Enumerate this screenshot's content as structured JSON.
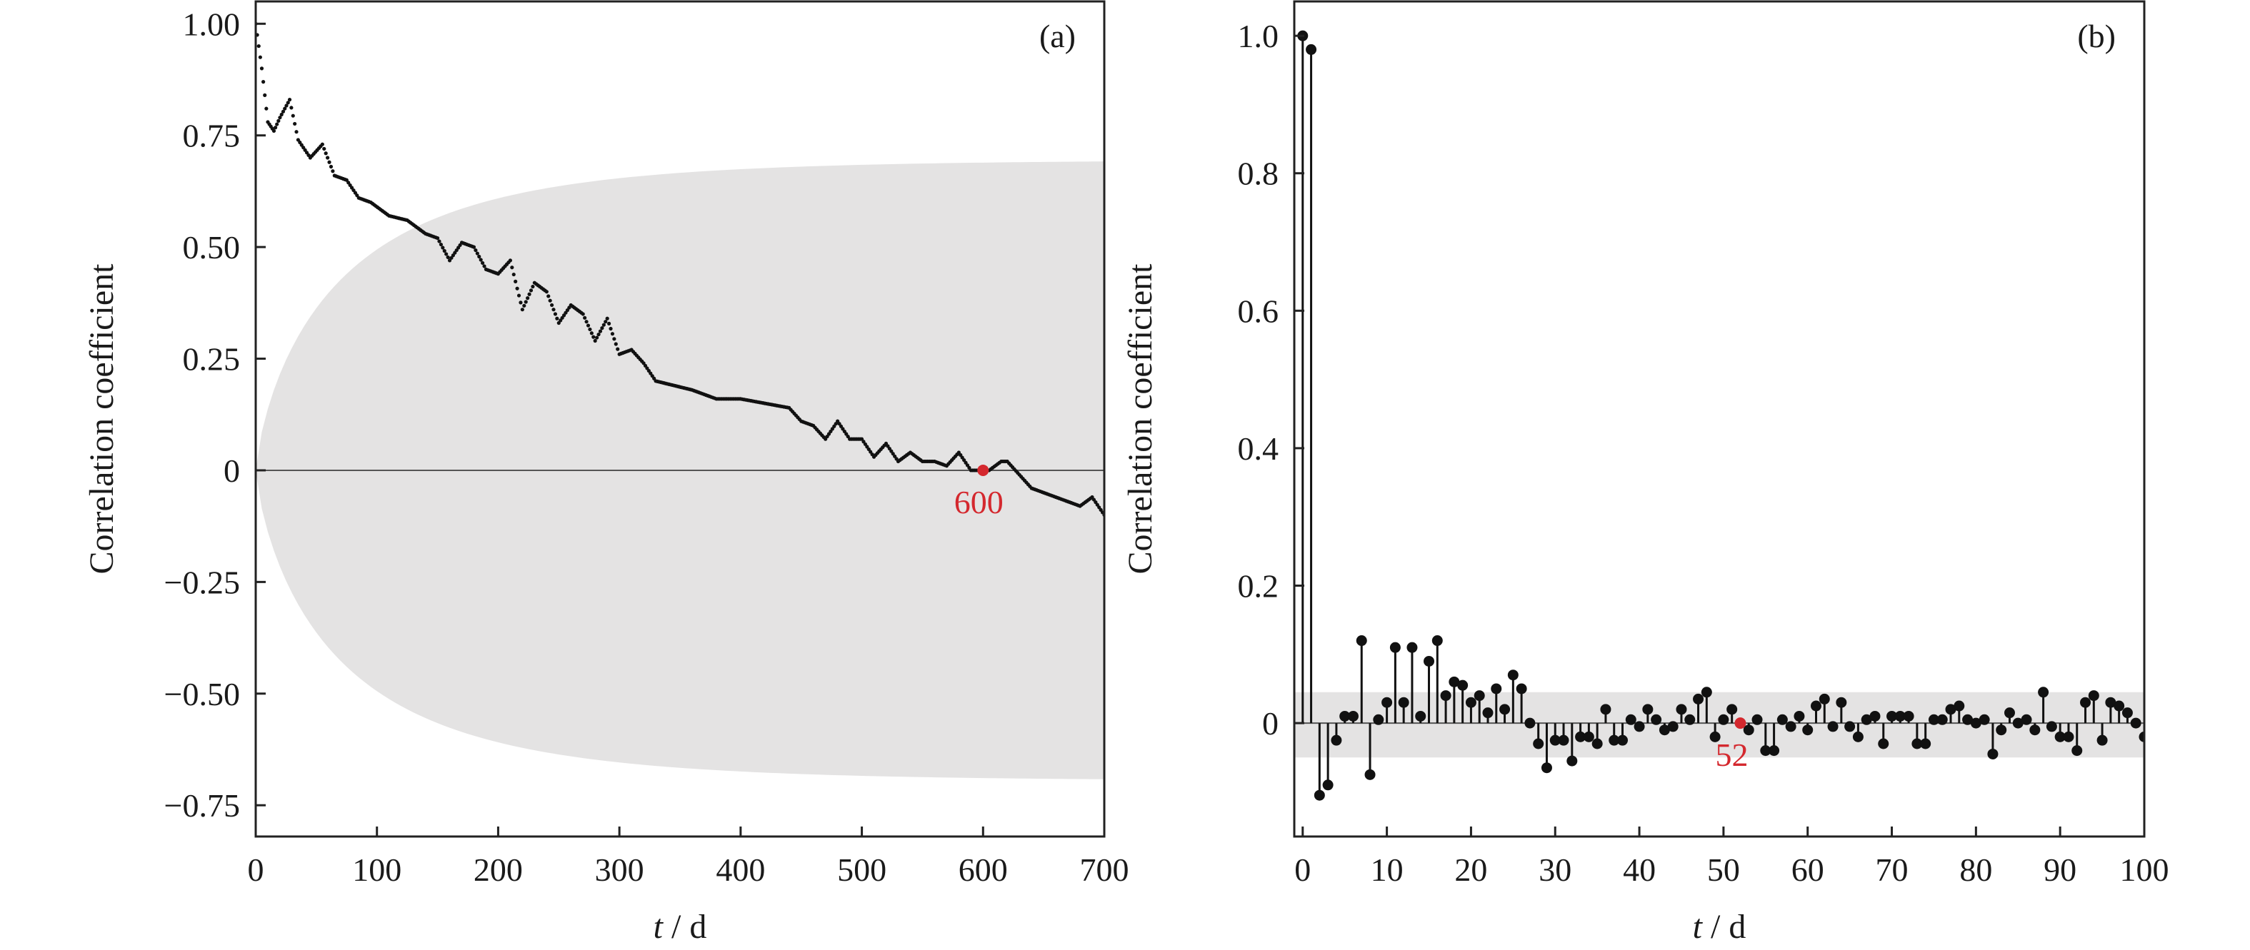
{
  "colors": {
    "band": "#e4e3e3",
    "data": "#111111",
    "axis": "#222222",
    "zero_line": "#555555",
    "highlight": "#d4282e"
  },
  "chart_data": [
    {
      "type": "scatter",
      "panel_label": "(a)",
      "xlabel": {
        "italic": "t",
        "rest": " / d"
      },
      "ylabel": "Correlation coefficient",
      "xlim": [
        0,
        700
      ],
      "ylim": [
        -0.82,
        1.05
      ],
      "x_ticks": [
        0,
        100,
        200,
        300,
        400,
        500,
        600,
        700
      ],
      "x_tick_labels": [
        "0",
        "100",
        "200",
        "300",
        "400",
        "500",
        "600",
        "700"
      ],
      "y_ticks": [
        1.0,
        0.75,
        0.5,
        0.25,
        0,
        -0.25,
        -0.5,
        -0.75
      ],
      "y_tick_labels": [
        "1.00",
        "0.75",
        "0.50",
        "0.25",
        "0",
        "−0.25",
        "−0.50",
        "−0.75"
      ],
      "zero_line": true,
      "confidence_band": {
        "x_start": 0,
        "x_end": 700,
        "plateau": 0.695
      },
      "series": [
        {
          "x": [
            0,
            5,
            10,
            15,
            20,
            28,
            35,
            45,
            55,
            65,
            75,
            85,
            95,
            110,
            125,
            140,
            150,
            160,
            170,
            180,
            190,
            200,
            210,
            220,
            230,
            240,
            250,
            260,
            270,
            280,
            290,
            300,
            310,
            320,
            330,
            345,
            360,
            380,
            400,
            420,
            440,
            450,
            460,
            470,
            480,
            490,
            500,
            510,
            520,
            530,
            540,
            550,
            560,
            570,
            580,
            590,
            600,
            605,
            615,
            620,
            630,
            640,
            650,
            660,
            670,
            680,
            690,
            700
          ],
          "y": [
            1.0,
            0.9,
            0.78,
            0.76,
            0.79,
            0.83,
            0.74,
            0.7,
            0.73,
            0.66,
            0.65,
            0.61,
            0.6,
            0.57,
            0.56,
            0.53,
            0.52,
            0.47,
            0.51,
            0.5,
            0.45,
            0.44,
            0.47,
            0.36,
            0.42,
            0.4,
            0.33,
            0.37,
            0.35,
            0.29,
            0.34,
            0.26,
            0.27,
            0.24,
            0.2,
            0.19,
            0.18,
            0.16,
            0.16,
            0.15,
            0.14,
            0.11,
            0.1,
            0.07,
            0.11,
            0.07,
            0.07,
            0.03,
            0.06,
            0.02,
            0.04,
            0.02,
            0.02,
            0.01,
            0.04,
            0.0,
            0.0,
            0.0,
            0.02,
            0.02,
            -0.01,
            -0.04,
            -0.05,
            -0.06,
            -0.07,
            -0.08,
            -0.06,
            -0.1
          ]
        }
      ],
      "highlight": {
        "x": 600,
        "y": 0,
        "label": "600"
      }
    },
    {
      "type": "stem",
      "panel_label": "(b)",
      "xlabel": {
        "italic": "t",
        "rest": " / d"
      },
      "ylabel": "Correlation coefficient",
      "xlim": [
        -1,
        100
      ],
      "ylim": [
        -0.165,
        1.05
      ],
      "x_ticks": [
        0,
        10,
        20,
        30,
        40,
        50,
        60,
        70,
        80,
        90,
        100
      ],
      "x_tick_labels": [
        "0",
        "10",
        "20",
        "30",
        "40",
        "50",
        "60",
        "70",
        "80",
        "90",
        "100"
      ],
      "y_ticks": [
        1.0,
        0.8,
        0.6,
        0.4,
        0.2,
        0
      ],
      "y_tick_labels": [
        "1.0",
        "0.8",
        "0.6",
        "0.4",
        "0.2",
        "0"
      ],
      "zero_line": true,
      "confidence_band": {
        "upper": 0.045,
        "lower": -0.05
      },
      "lags": [
        0,
        1,
        2,
        3,
        4,
        5,
        6,
        7,
        8,
        9,
        10,
        11,
        12,
        13,
        14,
        15,
        16,
        17,
        18,
        19,
        20,
        21,
        22,
        23,
        24,
        25,
        26,
        27,
        28,
        29,
        30,
        31,
        32,
        33,
        34,
        35,
        36,
        37,
        38,
        39,
        40,
        41,
        42,
        43,
        44,
        45,
        46,
        47,
        48,
        49,
        50,
        51,
        52,
        53,
        54,
        55,
        56,
        57,
        58,
        59,
        60,
        61,
        62,
        63,
        64,
        65,
        66,
        67,
        68,
        69,
        70,
        71,
        72,
        73,
        74,
        75,
        76,
        77,
        78,
        79,
        80,
        81,
        82,
        83,
        84,
        85,
        86,
        87,
        88,
        89,
        90,
        91,
        92,
        93,
        94,
        95,
        96,
        97,
        98,
        99,
        100
      ],
      "values": [
        1.0,
        0.98,
        -0.105,
        -0.09,
        -0.025,
        0.01,
        0.01,
        0.12,
        -0.075,
        0.005,
        0.03,
        0.11,
        0.03,
        0.11,
        0.01,
        0.09,
        0.12,
        0.04,
        0.06,
        0.055,
        0.03,
        0.04,
        0.015,
        0.05,
        0.02,
        0.07,
        0.05,
        0.0,
        -0.03,
        -0.065,
        -0.025,
        -0.025,
        -0.055,
        -0.02,
        -0.02,
        -0.03,
        0.02,
        -0.025,
        -0.025,
        0.005,
        -0.005,
        0.02,
        0.005,
        -0.01,
        -0.005,
        0.02,
        0.005,
        0.035,
        0.045,
        -0.02,
        0.005,
        0.02,
        0.0,
        -0.01,
        0.005,
        -0.04,
        -0.04,
        0.005,
        -0.005,
        0.01,
        -0.01,
        0.025,
        0.035,
        -0.005,
        0.03,
        -0.005,
        -0.02,
        0.005,
        0.01,
        -0.03,
        0.01,
        0.01,
        0.01,
        -0.03,
        -0.03,
        0.005,
        0.005,
        0.02,
        0.025,
        0.005,
        0.0,
        0.005,
        -0.045,
        -0.01,
        0.015,
        0.0,
        0.005,
        -0.01,
        0.045,
        -0.005,
        -0.02,
        -0.02,
        -0.04,
        0.03,
        0.04,
        -0.025,
        0.03,
        0.025,
        0.015,
        0.0,
        -0.02
      ],
      "highlight": {
        "x": 52,
        "y": 0,
        "label": "52"
      }
    }
  ]
}
